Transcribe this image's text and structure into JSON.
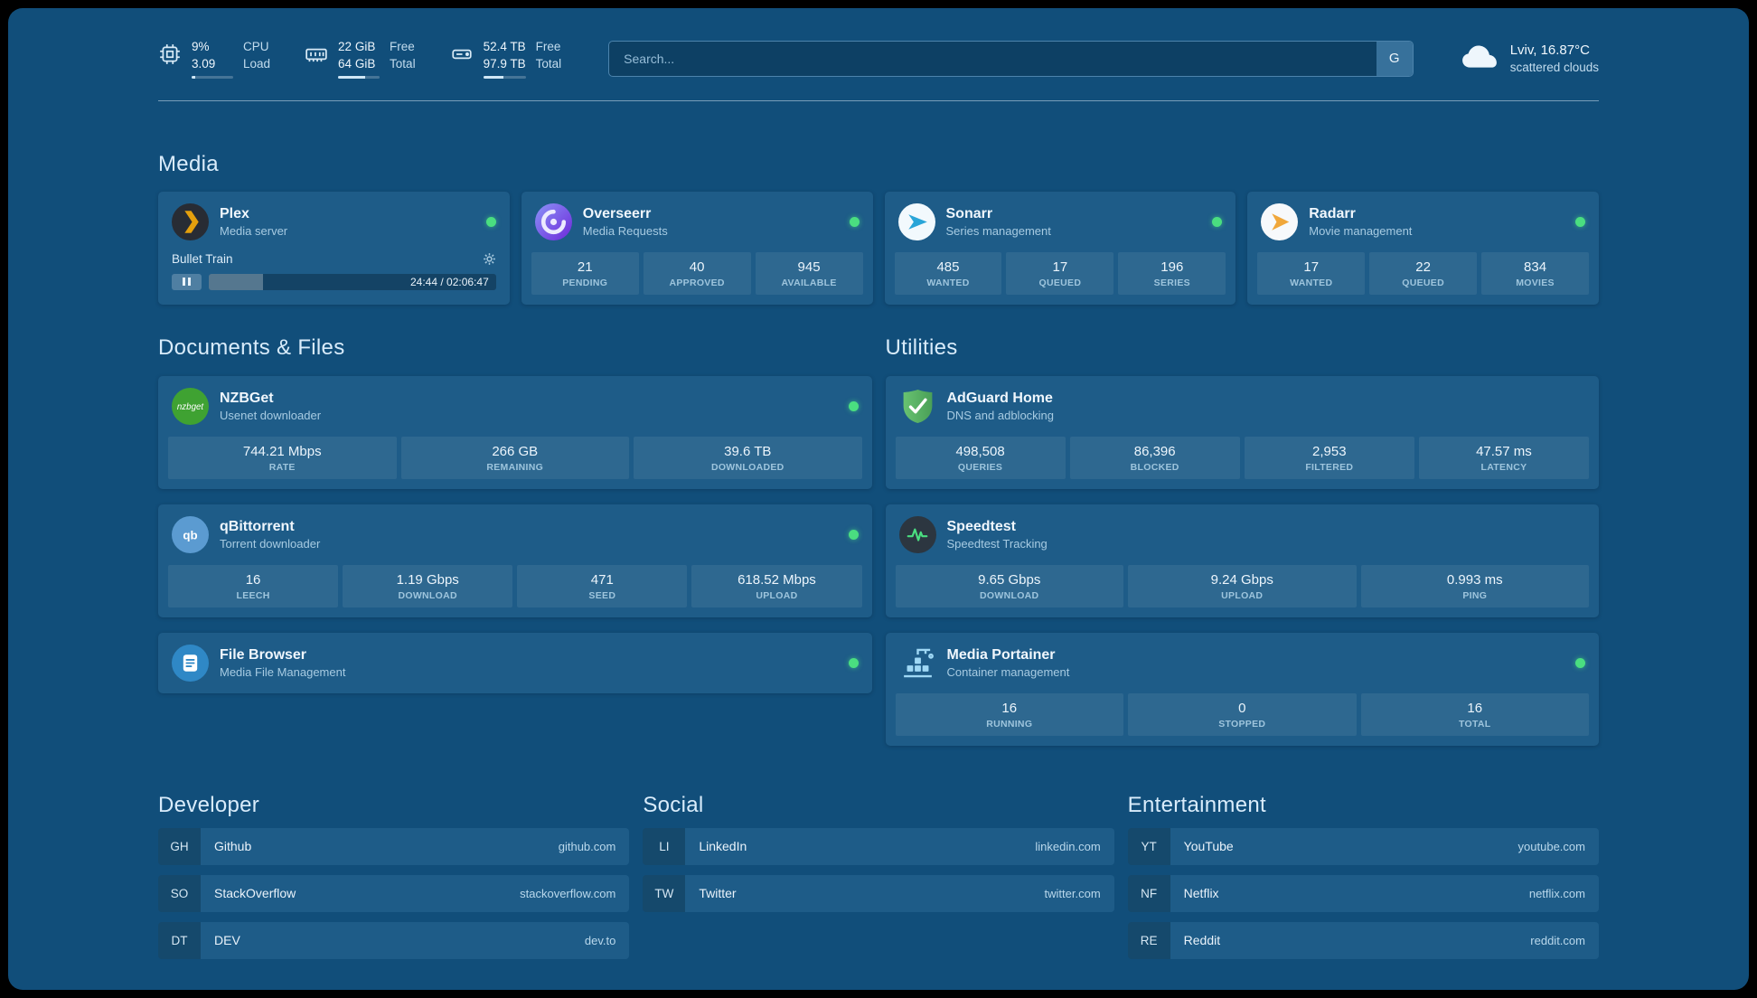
{
  "colors": {
    "status_online": "#4ade80",
    "page_background": "#114E7A",
    "card_background": "#1E5C88"
  },
  "topbar": {
    "resources": [
      {
        "icon": "cpu-icon",
        "value_top": "9%",
        "value_bottom": "3.09",
        "label_top": "CPU",
        "label_bottom": "Load",
        "progress": 9
      },
      {
        "icon": "memory-icon",
        "value_top": "22 GiB",
        "value_bottom": "64 GiB",
        "label_top": "Free",
        "label_bottom": "Total",
        "progress": 66
      },
      {
        "icon": "disk-icon",
        "value_top": "52.4 TB",
        "value_bottom": "97.9 TB",
        "label_top": "Free",
        "label_bottom": "Total",
        "progress": 47
      }
    ],
    "search": {
      "placeholder": "Search...",
      "provider_button": "G"
    },
    "weather": {
      "icon": "cloud-icon",
      "location": "Lviv, 16.87°C",
      "condition": "scattered clouds"
    }
  },
  "sections": {
    "media": {
      "title": "Media",
      "plex": {
        "icon": "plex-icon",
        "title": "Plex",
        "subtitle": "Media server",
        "status": "online",
        "now_playing": "Bullet Train",
        "time": "24:44 / 02:06:47",
        "progress_percent": 19
      },
      "overseerr": {
        "icon": "overseerr-icon",
        "title": "Overseerr",
        "subtitle": "Media Requests",
        "status": "online",
        "stats": [
          {
            "value": "21",
            "label": "PENDING"
          },
          {
            "value": "40",
            "label": "APPROVED"
          },
          {
            "value": "945",
            "label": "AVAILABLE"
          }
        ]
      },
      "sonarr": {
        "icon": "sonarr-icon",
        "title": "Sonarr",
        "subtitle": "Series management",
        "status": "online",
        "stats": [
          {
            "value": "485",
            "label": "WANTED"
          },
          {
            "value": "17",
            "label": "QUEUED"
          },
          {
            "value": "196",
            "label": "SERIES"
          }
        ]
      },
      "radarr": {
        "icon": "radarr-icon",
        "title": "Radarr",
        "subtitle": "Movie management",
        "status": "online",
        "stats": [
          {
            "value": "17",
            "label": "WANTED"
          },
          {
            "value": "22",
            "label": "QUEUED"
          },
          {
            "value": "834",
            "label": "MOVIES"
          }
        ]
      }
    },
    "documents": {
      "title": "Documents & Files",
      "nzbget": {
        "icon": "nzbget-icon",
        "title": "NZBGet",
        "subtitle": "Usenet downloader",
        "status": "online",
        "stats": [
          {
            "value": "744.21 Mbps",
            "label": "RATE"
          },
          {
            "value": "266 GB",
            "label": "REMAINING"
          },
          {
            "value": "39.6 TB",
            "label": "DOWNLOADED"
          }
        ]
      },
      "qbittorrent": {
        "icon": "qbittorrent-icon",
        "title": "qBittorrent",
        "subtitle": "Torrent downloader",
        "status": "online",
        "stats": [
          {
            "value": "16",
            "label": "LEECH"
          },
          {
            "value": "1.19 Gbps",
            "label": "DOWNLOAD"
          },
          {
            "value": "471",
            "label": "SEED"
          },
          {
            "value": "618.52 Mbps",
            "label": "UPLOAD"
          }
        ]
      },
      "filebrowser": {
        "icon": "filebrowser-icon",
        "title": "File Browser",
        "subtitle": "Media File Management",
        "status": "online"
      }
    },
    "utilities": {
      "title": "Utilities",
      "adguard": {
        "icon": "adguard-icon",
        "title": "AdGuard Home",
        "subtitle": "DNS and adblocking",
        "stats": [
          {
            "value": "498,508",
            "label": "QUERIES"
          },
          {
            "value": "86,396",
            "label": "BLOCKED"
          },
          {
            "value": "2,953",
            "label": "FILTERED"
          },
          {
            "value": "47.57 ms",
            "label": "LATENCY"
          }
        ]
      },
      "speedtest": {
        "icon": "speedtest-icon",
        "title": "Speedtest",
        "subtitle": "Speedtest Tracking",
        "stats": [
          {
            "value": "9.65 Gbps",
            "label": "DOWNLOAD"
          },
          {
            "value": "9.24 Gbps",
            "label": "UPLOAD"
          },
          {
            "value": "0.993 ms",
            "label": "PING"
          }
        ]
      },
      "portainer": {
        "icon": "portainer-icon",
        "title": "Media Portainer",
        "subtitle": "Container management",
        "status": "online",
        "stats": [
          {
            "value": "16",
            "label": "RUNNING"
          },
          {
            "value": "0",
            "label": "STOPPED"
          },
          {
            "value": "16",
            "label": "TOTAL"
          }
        ]
      }
    },
    "bookmarks": [
      {
        "title": "Developer",
        "items": [
          {
            "abbr": "GH",
            "name": "Github",
            "domain": "github.com"
          },
          {
            "abbr": "SO",
            "name": "StackOverflow",
            "domain": "stackoverflow.com"
          },
          {
            "abbr": "DT",
            "name": "DEV",
            "domain": "dev.to"
          }
        ]
      },
      {
        "title": "Social",
        "items": [
          {
            "abbr": "LI",
            "name": "LinkedIn",
            "domain": "linkedin.com"
          },
          {
            "abbr": "TW",
            "name": "Twitter",
            "domain": "twitter.com"
          }
        ]
      },
      {
        "title": "Entertainment",
        "items": [
          {
            "abbr": "YT",
            "name": "YouTube",
            "domain": "youtube.com"
          },
          {
            "abbr": "NF",
            "name": "Netflix",
            "domain": "netflix.com"
          },
          {
            "abbr": "RE",
            "name": "Reddit",
            "domain": "reddit.com"
          }
        ]
      }
    ]
  }
}
